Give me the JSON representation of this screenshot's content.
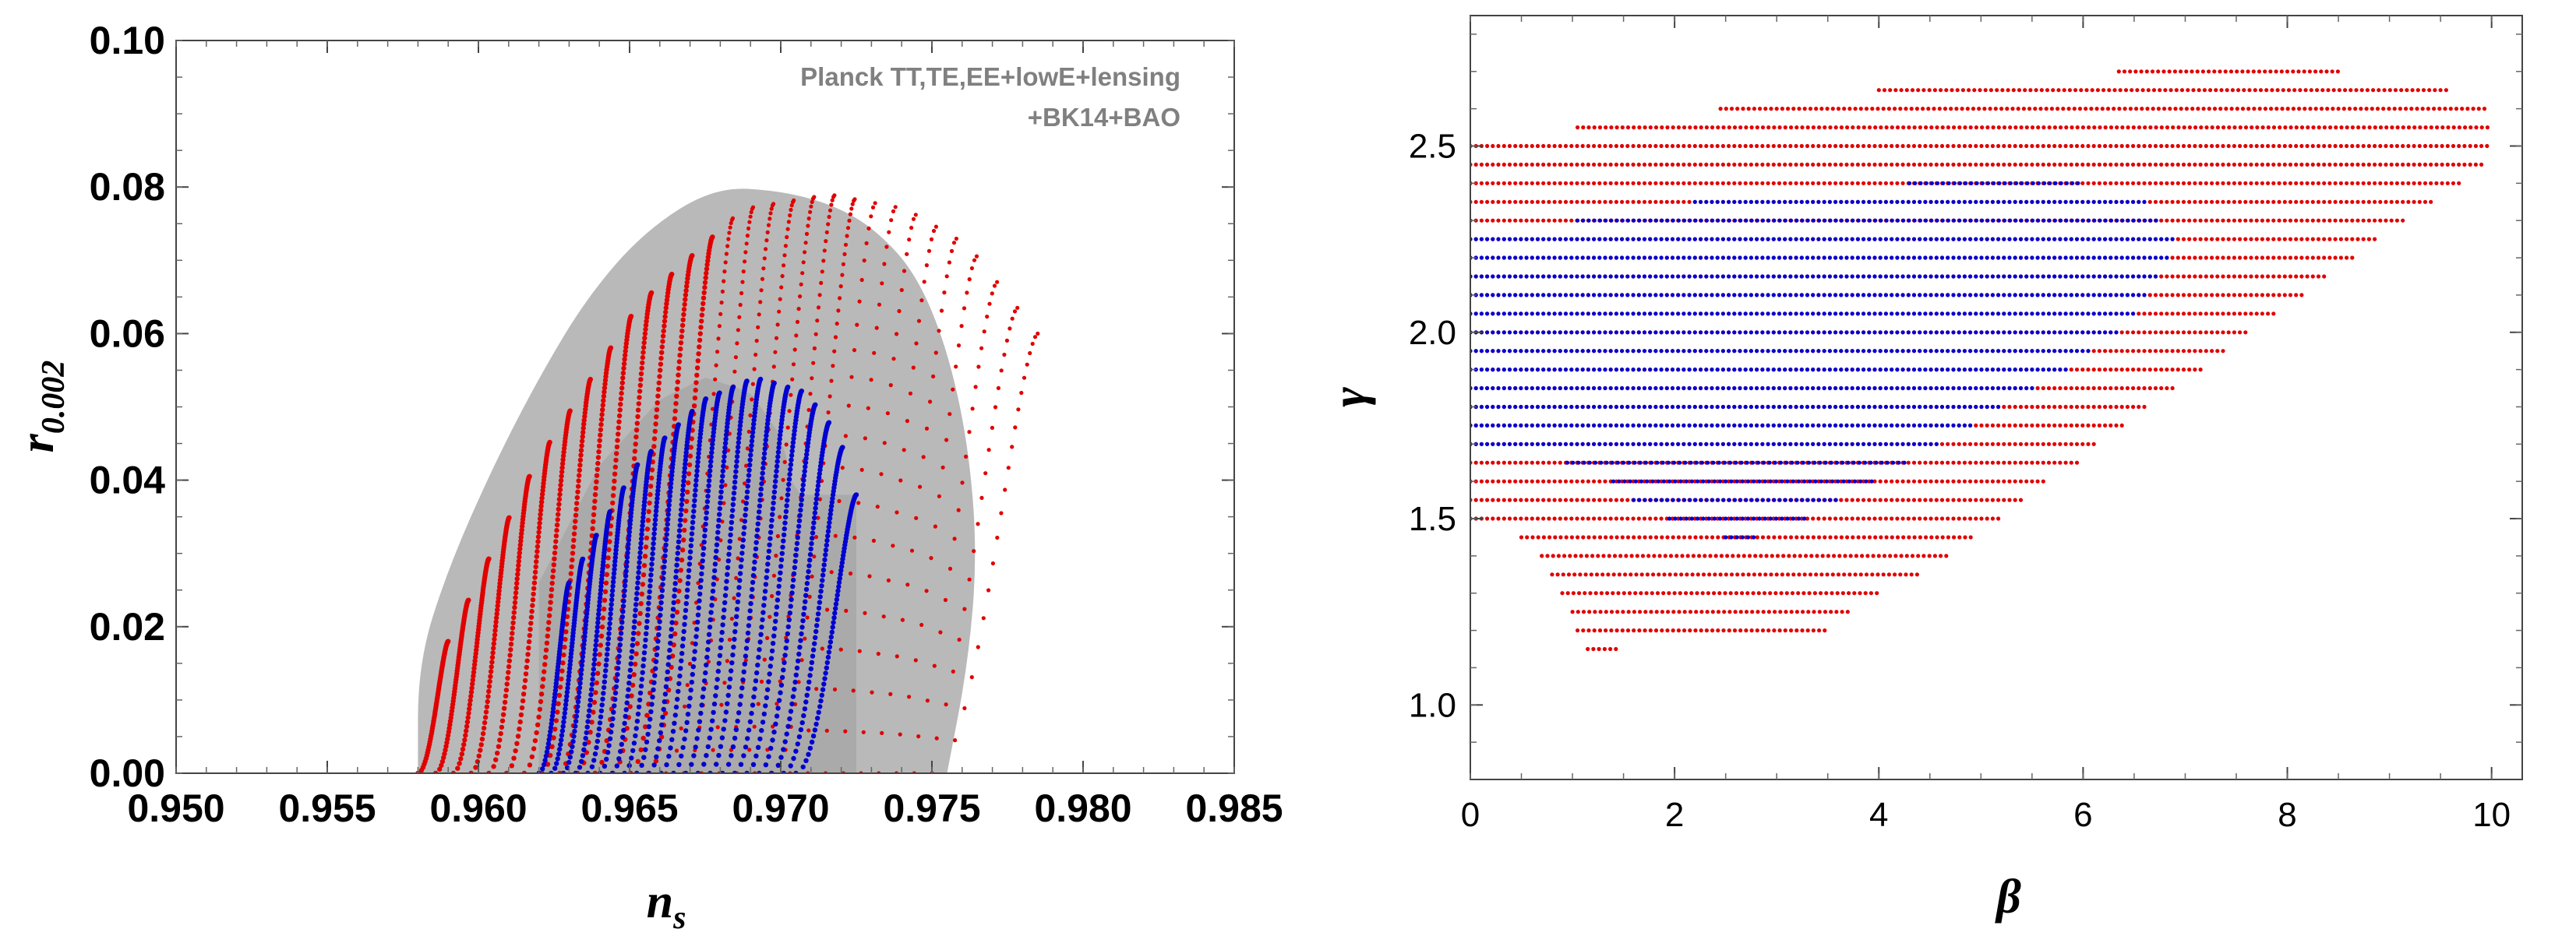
{
  "chart_data": [
    {
      "type": "scatter",
      "panel": "left",
      "xlabel": "n",
      "xlabel_sub": "s",
      "ylabel": "r",
      "ylabel_sub": "0.002",
      "xlim": [
        0.95,
        0.985
      ],
      "ylim": [
        0.0,
        0.1
      ],
      "xticks": [
        "0.950",
        "0.955",
        "0.960",
        "0.965",
        "0.970",
        "0.975",
        "0.980",
        "0.985"
      ],
      "yticks": [
        "0.00",
        "0.02",
        "0.04",
        "0.06",
        "0.08",
        "0.10"
      ],
      "legend": [
        "Planck TT,TE,EE+lowE+lensing",
        "+BK14+BAO"
      ],
      "contour_region": {
        "name": "Planck TT,TE,EE+lowE+lensing+BK14+BAO",
        "color": "#b9b9b9",
        "boundary": [
          [
            0.958,
            0.0
          ],
          [
            0.958,
            0.015
          ],
          [
            0.959,
            0.028
          ],
          [
            0.9605,
            0.042
          ],
          [
            0.962,
            0.054
          ],
          [
            0.9636,
            0.065
          ],
          [
            0.9655,
            0.074
          ],
          [
            0.9678,
            0.08
          ],
          [
            0.97,
            0.0795
          ],
          [
            0.9718,
            0.0775
          ],
          [
            0.9732,
            0.074
          ],
          [
            0.9745,
            0.068
          ],
          [
            0.9755,
            0.058
          ],
          [
            0.9762,
            0.045
          ],
          [
            0.9765,
            0.03
          ],
          [
            0.9762,
            0.015
          ],
          [
            0.9755,
            0.0
          ]
        ]
      },
      "series": [
        {
          "name": "red",
          "color": "#e00000",
          "n_curves": 30,
          "base_ns": [
            0.958,
            0.975
          ],
          "tip_ns_range": [
            0.959,
            0.9785
          ],
          "curve_shape": "r = rmax*(1-(1-u)^1.6); ns = base + (tip-base)*(u^0.5)",
          "rmax_profile": [
            [
              0.958,
              0.018
            ],
            [
              0.9605,
              0.042
            ],
            [
              0.9635,
              0.064
            ],
            [
              0.9665,
              0.077
            ],
            [
              0.969,
              0.079
            ],
            [
              0.9712,
              0.077
            ],
            [
              0.973,
              0.072
            ],
            [
              0.975,
              0.06
            ]
          ]
        },
        {
          "name": "blue",
          "color": "#0000d0",
          "n_curves": 22,
          "base_ns": [
            0.962,
            0.9705
          ],
          "tip_ns_range": [
            0.963,
            0.9725
          ],
          "curve_shape": "r = rmax*(1-(1-u)^1.6); ns = base + (tip-base)*(u^0.5)",
          "rmax_profile": [
            [
              0.962,
              0.026
            ],
            [
              0.964,
              0.042
            ],
            [
              0.966,
              0.051
            ],
            [
              0.9675,
              0.054
            ],
            [
              0.969,
              0.052
            ],
            [
              0.97,
              0.046
            ],
            [
              0.9705,
              0.038
            ]
          ]
        }
      ]
    },
    {
      "type": "scatter",
      "panel": "right",
      "xlabel": "β",
      "ylabel": "γ",
      "xlim": [
        0,
        10.3
      ],
      "ylim": [
        0.8,
        2.85
      ],
      "xticks": [
        "0",
        "2",
        "4",
        "6",
        "8",
        "10"
      ],
      "yticks": [
        "1.0",
        "1.5",
        "2.0",
        "2.5"
      ],
      "series": [
        {
          "name": "red",
          "color": "#e00000",
          "rows": [
            [
              2.7,
              6.35,
              8.5
            ],
            [
              2.65,
              4.0,
              9.6
            ],
            [
              2.6,
              2.45,
              9.95
            ],
            [
              2.55,
              1.05,
              10.0
            ],
            [
              2.5,
              0.0,
              10.0
            ],
            [
              2.45,
              0.0,
              9.9
            ],
            [
              2.4,
              0.0,
              9.7
            ],
            [
              2.35,
              0.0,
              9.45
            ],
            [
              2.3,
              0.0,
              9.15
            ],
            [
              2.25,
              0.0,
              8.9
            ],
            [
              2.2,
              0.0,
              8.65
            ],
            [
              2.15,
              0.0,
              8.4
            ],
            [
              2.1,
              0.0,
              8.15
            ],
            [
              2.05,
              0.0,
              7.9
            ],
            [
              2.0,
              0.0,
              7.6
            ],
            [
              1.95,
              0.0,
              7.4
            ],
            [
              1.9,
              0.0,
              7.15
            ],
            [
              1.85,
              0.0,
              6.9
            ],
            [
              1.8,
              0.0,
              6.65
            ],
            [
              1.75,
              0.0,
              6.4
            ],
            [
              1.7,
              0.0,
              6.15
            ],
            [
              1.65,
              0.0,
              5.95
            ],
            [
              1.6,
              0.0,
              5.65
            ],
            [
              1.55,
              0.0,
              5.4
            ],
            [
              1.5,
              0.0,
              5.2
            ],
            [
              1.45,
              0.5,
              4.95
            ],
            [
              1.4,
              0.7,
              4.7
            ],
            [
              1.35,
              0.8,
              4.4
            ],
            [
              1.3,
              0.9,
              4.0
            ],
            [
              1.25,
              1.0,
              3.7
            ],
            [
              1.2,
              1.05,
              3.5
            ],
            [
              1.15,
              1.15,
              1.45
            ]
          ]
        },
        {
          "name": "blue",
          "color": "#0000d0",
          "rows": [
            [
              2.4,
              4.3,
              6.0
            ],
            [
              2.35,
              2.2,
              6.6
            ],
            [
              2.3,
              1.05,
              6.75
            ],
            [
              2.25,
              0.0,
              6.9
            ],
            [
              2.2,
              0.0,
              6.85
            ],
            [
              2.15,
              0.0,
              6.75
            ],
            [
              2.1,
              0.0,
              6.65
            ],
            [
              2.05,
              0.0,
              6.5
            ],
            [
              2.0,
              0.0,
              6.35
            ],
            [
              1.95,
              0.0,
              6.1
            ],
            [
              1.9,
              0.0,
              5.85
            ],
            [
              1.85,
              0.0,
              5.55
            ],
            [
              1.8,
              0.0,
              5.2
            ],
            [
              1.75,
              0.0,
              4.9
            ],
            [
              1.7,
              0.0,
              4.6
            ],
            [
              1.65,
              0.95,
              4.25
            ],
            [
              1.6,
              1.4,
              3.95
            ],
            [
              1.55,
              1.6,
              3.6
            ],
            [
              1.5,
              1.95,
              3.3
            ],
            [
              1.45,
              2.5,
              2.8
            ]
          ]
        }
      ]
    }
  ]
}
